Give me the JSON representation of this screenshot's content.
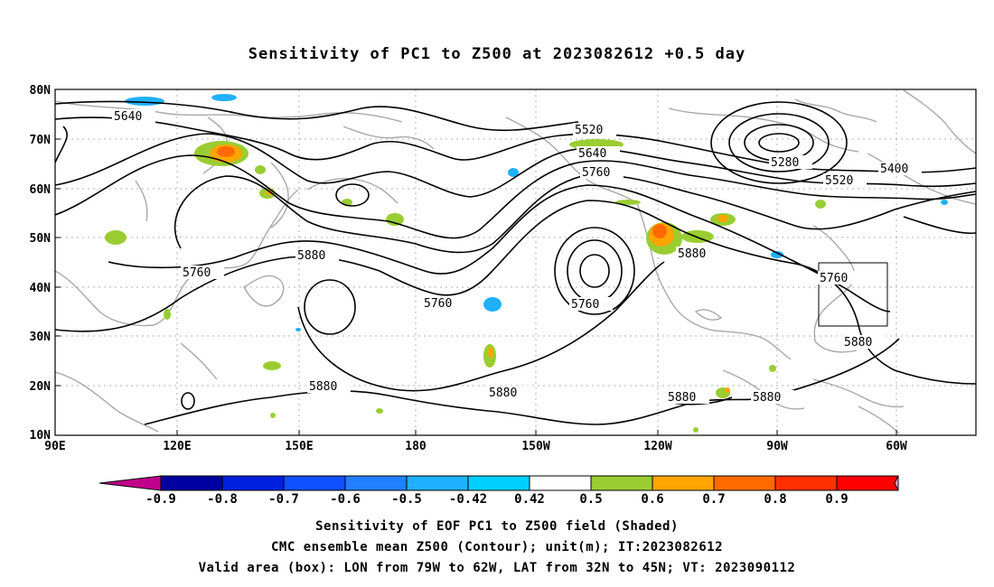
{
  "title": "Sensitivity of PC1 to Z500 at 2023082612 +0.5 day",
  "map": {
    "lat_labels": [
      "80N",
      "70N",
      "60N",
      "50N",
      "40N",
      "30N",
      "20N",
      "10N"
    ],
    "lon_labels": [
      "90E",
      "120E",
      "150E",
      "180",
      "150W",
      "120W",
      "90W",
      "60W"
    ],
    "contour_labels": [
      {
        "text": "5640"
      },
      {
        "text": "5520"
      },
      {
        "text": "5640"
      },
      {
        "text": "5760"
      },
      {
        "text": "5280"
      },
      {
        "text": "5400"
      },
      {
        "text": "5520"
      },
      {
        "text": "5760"
      },
      {
        "text": "5880"
      },
      {
        "text": "5760"
      },
      {
        "text": "5760"
      },
      {
        "text": "5880"
      },
      {
        "text": "5760"
      },
      {
        "text": "5880"
      },
      {
        "text": "5880"
      },
      {
        "text": "5880"
      },
      {
        "text": "5880"
      },
      {
        "text": "5880"
      }
    ],
    "valid_box": {
      "lon_from": "79W",
      "lon_to": "62W",
      "lat_from": "32N",
      "lat_to": "45N"
    }
  },
  "colorbar": {
    "labels": [
      "-0.9",
      "-0.8",
      "-0.7",
      "-0.6",
      "-0.5",
      "-0.42",
      "0.42",
      "0.5",
      "0.6",
      "0.7",
      "0.8",
      "0.9"
    ],
    "colors": [
      "#0000a0",
      "#0020e0",
      "#1050ff",
      "#2080ff",
      "#20b0ff",
      "#00d0ff",
      "#ffffff",
      "#9acd32",
      "#ffa500",
      "#ff6a00",
      "#ff3000",
      "#ff0000"
    ],
    "low_arrow_color": "#c0008a",
    "high_arrow_color": "#ff9ccc"
  },
  "captions": {
    "line1": "Sensitivity of EOF PC1 to Z500 field (Shaded)",
    "line2": "CMC ensemble mean Z500 (Contour); unit(m); IT:2023082612",
    "line3": "Valid area (box): LON from 79W to 62W, LAT from 32N to 45N; VT: 2023090112"
  }
}
